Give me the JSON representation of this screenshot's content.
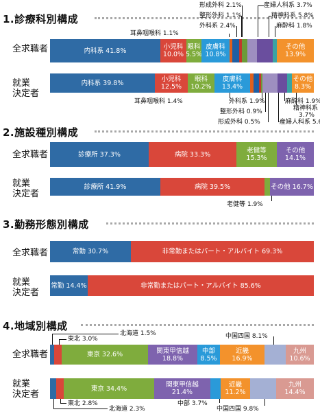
{
  "colors": {
    "内科系": "#2f6ba5",
    "小児科": "#d9473a",
    "眼科": "#7fac3d",
    "皮膚科": "#2a9ad9",
    "耳鼻咽喉科": "#e0601c",
    "外科系": "#1f5fa3",
    "整形外科": "#c1372c",
    "形成外科": "#6c9b38",
    "産婦人科系": "#9e8fc0",
    "精神科系": "#6a4e9e",
    "麻酔科": "#3aa3a3",
    "その他": "#f3922c",
    "診療所": "#2f6ba5",
    "病院": "#d9473a",
    "老健等": "#7fac3d",
    "施設その他": "#7e63ae",
    "常勤": "#2f6ba5",
    "非常勤": "#d9473a",
    "北海道": "#2f6ba5",
    "東北": "#d9473a",
    "東京": "#7fac3d",
    "関東甲信越": "#7e63ae",
    "中部": "#2a9ad9",
    "近畿": "#f3922c",
    "中国四国": "#a4b0d4",
    "九州": "#d99a92"
  },
  "chart_data": [
    {
      "type": "bar",
      "title": "1.診療科別構成",
      "series": [
        {
          "name": "全求職者",
          "values": [
            {
              "label": "内科系",
              "value": 41.8
            },
            {
              "label": "小児科",
              "value": 10.0
            },
            {
              "label": "眼科",
              "value": 5.5
            },
            {
              "label": "皮膚科",
              "value": 10.8
            },
            {
              "label": "耳鼻咽喉科",
              "value": 1.1
            },
            {
              "label": "外科系",
              "value": 2.4
            },
            {
              "label": "整形外科",
              "value": 1.1
            },
            {
              "label": "形成外科",
              "value": 2.1
            },
            {
              "label": "産婦人科系",
              "value": 3.7
            },
            {
              "label": "精神科系",
              "value": 5.8
            },
            {
              "label": "麻酔科",
              "value": 1.8
            },
            {
              "label": "その他",
              "value": 13.9
            }
          ]
        },
        {
          "name": "就業決定者",
          "values": [
            {
              "label": "内科系",
              "value": 39.8
            },
            {
              "label": "小児科",
              "value": 12.5
            },
            {
              "label": "眼科",
              "value": 10.2
            },
            {
              "label": "皮膚科",
              "value": 13.4
            },
            {
              "label": "耳鼻咽喉科",
              "value": 1.4
            },
            {
              "label": "外科系",
              "value": 1.9
            },
            {
              "label": "整形外科",
              "value": 0.9
            },
            {
              "label": "形成外科",
              "value": 0.5
            },
            {
              "label": "産婦人科系",
              "value": 5.6
            },
            {
              "label": "精神科系",
              "value": 3.7
            },
            {
              "label": "麻酔科",
              "value": 1.9
            },
            {
              "label": "その他",
              "value": 8.3
            }
          ]
        }
      ]
    },
    {
      "type": "bar",
      "title": "2.施設種別構成",
      "series": [
        {
          "name": "全求職者",
          "values": [
            {
              "label": "診療所",
              "value": 37.3
            },
            {
              "label": "病院",
              "value": 33.3
            },
            {
              "label": "老健等",
              "value": 15.3
            },
            {
              "label": "その他",
              "value": 14.1
            }
          ]
        },
        {
          "name": "就業決定者",
          "values": [
            {
              "label": "診療所",
              "value": 41.9
            },
            {
              "label": "病院",
              "value": 39.5
            },
            {
              "label": "老健等",
              "value": 1.9
            },
            {
              "label": "その他",
              "value": 16.7
            }
          ]
        }
      ]
    },
    {
      "type": "bar",
      "title": "3.勤務形態別構成",
      "series": [
        {
          "name": "全求職者",
          "values": [
            {
              "label": "常勤",
              "value": 30.7
            },
            {
              "label": "非常勤またはパート・アルバイト",
              "value": 69.3
            }
          ]
        },
        {
          "name": "就業決定者",
          "values": [
            {
              "label": "常勤",
              "value": 14.4
            },
            {
              "label": "非常勤またはパート・アルバイト",
              "value": 85.6
            }
          ]
        }
      ]
    },
    {
      "type": "bar",
      "title": "4.地域別構成",
      "series": [
        {
          "name": "全求職者",
          "values": [
            {
              "label": "北海道",
              "value": 1.5
            },
            {
              "label": "東北",
              "value": 3.0
            },
            {
              "label": "東京",
              "value": 32.6
            },
            {
              "label": "関東甲信越",
              "value": 18.8
            },
            {
              "label": "中部",
              "value": 8.5
            },
            {
              "label": "近畿",
              "value": 16.9
            },
            {
              "label": "中国四国",
              "value": 8.1
            },
            {
              "label": "九州",
              "value": 10.6
            }
          ]
        },
        {
          "name": "就業決定者",
          "values": [
            {
              "label": "北海道",
              "value": 2.3
            },
            {
              "label": "東北",
              "value": 2.8
            },
            {
              "label": "東京",
              "value": 34.4
            },
            {
              "label": "関東甲信越",
              "value": 21.4
            },
            {
              "label": "中部",
              "value": 3.7
            },
            {
              "label": "近畿",
              "value": 11.2
            },
            {
              "label": "中国四国",
              "value": 9.8
            },
            {
              "label": "九州",
              "value": 14.4
            }
          ]
        }
      ]
    }
  ],
  "labels": {
    "s1_r1": [
      "内科系 41.8%",
      "小児科\n10.0%",
      "眼科\n5.5%",
      "皮膚科\n10.8%",
      "",
      "",
      "",
      "",
      "",
      "",
      "",
      "その他\n13.9%"
    ],
    "s1_r2": [
      "内科系 39.8%",
      "小児科\n12.5%",
      "眼科\n10.2%",
      "皮膚科\n13.4%",
      "",
      "",
      "",
      "",
      "",
      "",
      "",
      "その他\n8.3%"
    ],
    "s2_r1": [
      "診療所 37.3%",
      "病院 33.3%",
      "老健等\n15.3%",
      "その他\n14.1%"
    ],
    "s2_r2": [
      "診療所 41.9%",
      "病院 39.5%",
      "",
      "その他 16.7%"
    ],
    "s3_r1": [
      "常勤 30.7%",
      "非常勤またはパート・アルバイト 69.3%"
    ],
    "s3_r2": [
      "常勤 14.4%",
      "非常勤またはパート・アルバイト 85.6%"
    ],
    "s4_r1": [
      "",
      "",
      "東京 32.6%",
      "関東甲信越\n18.8%",
      "中部\n8.5%",
      "近畿\n16.9%",
      "",
      "九州\n10.6%"
    ],
    "s4_r2": [
      "",
      "",
      "東京 34.4%",
      "関東甲信越\n21.4%",
      "",
      "近畿\n11.2%",
      "",
      "九州\n14.4%"
    ]
  },
  "annotations": {
    "s1_top": {
      "keisei": "形成外科 2.1%",
      "sanpu": "産婦人科系 3.7%",
      "seikei": "整形外科 1.1%",
      "seishin": "精神科系 5.8%",
      "geka": "外科系 2.4%",
      "masui": "麻酔科 1.8%",
      "jibi": "耳鼻咽喉科 1.1%"
    },
    "s1_bottom": {
      "jibi": "耳鼻咽喉科 1.4%",
      "geka": "外科系 1.9%",
      "seikei": "整形外科 0.9%",
      "keisei": "形成外科 0.5%",
      "sanpu": "産婦人科系 5.6%",
      "masui": "麻酔科 1.9%",
      "seishin_line1": "精神科系",
      "seishin_line2": "3.7%"
    },
    "s2_bottom": {
      "roken": "老健等 1.9%"
    },
    "s4_top": {
      "hokkaido": "北海道 1.5%",
      "tohoku": "東北 3.0%",
      "chugoku": "中国四国 8.1%"
    },
    "s4_bottom": {
      "tohoku": "東北 2.8%",
      "hokkaido": "北海道 2.3%",
      "chubu": "中部 3.7%",
      "chugoku": "中国四国 9.8%"
    }
  },
  "row_labels": {
    "all_seekers": "全求職者",
    "hired_line1": "就業",
    "hired_line2": "決定者"
  }
}
